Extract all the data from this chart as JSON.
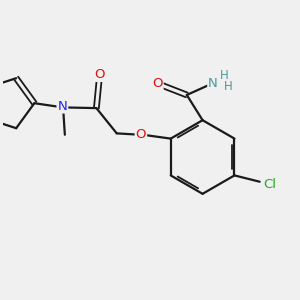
{
  "background_color": "#f0f0f0",
  "bond_color": "#1a1a1a",
  "atom_colors": {
    "O": "#dd1111",
    "N_amide": "#4a9a9a",
    "N_amine": "#2222ee",
    "Cl": "#22aa22",
    "H": "#4a9a9a",
    "C": "#1a1a1a"
  },
  "figsize": [
    3.0,
    3.0
  ],
  "dpi": 100
}
